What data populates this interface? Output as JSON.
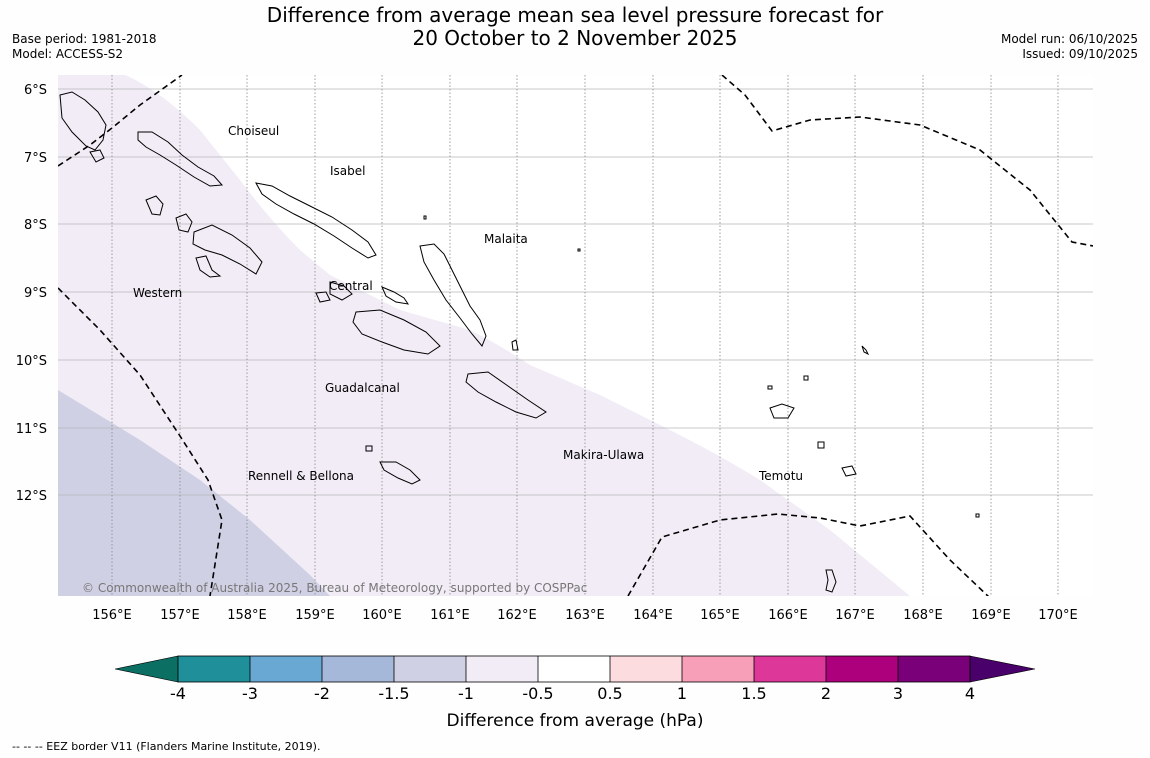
{
  "title": {
    "line1": "Difference from average mean sea level pressure forecast for",
    "line2": "20 October to 2 November 2025"
  },
  "meta_left": {
    "base_period": "Base period: 1981-2018",
    "model": "Model: ACCESS-S2"
  },
  "meta_right": {
    "model_run": "Model run: 06/10/2025",
    "issued": "Issued: 09/10/2025"
  },
  "latitude_labels": [
    "6°S",
    "7°S",
    "8°S",
    "9°S",
    "10°S",
    "11°S",
    "12°S"
  ],
  "longitude_labels": [
    "156°E",
    "157°E",
    "158°E",
    "159°E",
    "160°E",
    "161°E",
    "162°E",
    "163°E",
    "164°E",
    "165°E",
    "166°E",
    "167°E",
    "168°E",
    "169°E",
    "170°E"
  ],
  "regions": {
    "choiseul": "Choiseul",
    "isabel": "Isabel",
    "malaita": "Malaita",
    "western": "Western",
    "central": "Central",
    "guadalcanal": "Guadalcanal",
    "makira": "Makira-Ulawa",
    "rennell": "Rennell & Bellona",
    "temotu": "Temotu"
  },
  "copyright": "© Commonwealth of Australia 2025, Bureau of Meteorology, supported by COSPPac",
  "colorbar": {
    "title": "Difference from average (hPa)",
    "tick_labels": [
      "-4",
      "-3",
      "-2",
      "-1.5",
      "-1",
      "-0.5",
      "0.5",
      "1",
      "1.5",
      "2",
      "3",
      "4"
    ],
    "colors": [
      "#0b6f63",
      "#1f8f99",
      "#6aa8d4",
      "#a5b8da",
      "#cfd0e4",
      "#f2ecf6",
      "#ffffff",
      "#fddcdf",
      "#f79eb9",
      "#dc3799",
      "#ad007d",
      "#7a0079",
      "#4a006a"
    ]
  },
  "shading_colors": {
    "minus_1_to_minus_0_5": "#f2ecf6",
    "minus_1_5_to_minus_1": "#cfd0e4"
  },
  "footnote": "-- -- -- EEZ border V11 (Flanders Marine Institute, 2019)."
}
